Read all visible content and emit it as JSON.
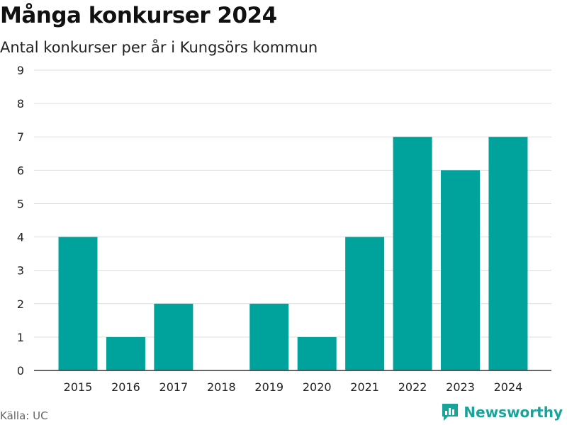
{
  "chart_data": {
    "type": "bar",
    "title": "Många konkurser 2024",
    "subtitle": "Antal konkurser per år i Kungsörs kommun",
    "categories": [
      "2015",
      "2016",
      "2017",
      "2018",
      "2019",
      "2020",
      "2021",
      "2022",
      "2023",
      "2024"
    ],
    "values": [
      4,
      1,
      2,
      0,
      2,
      1,
      4,
      7,
      6,
      7
    ],
    "xlabel": "",
    "ylabel": "",
    "ylim": [
      0,
      9
    ],
    "yticks": [
      0,
      1,
      2,
      3,
      4,
      5,
      6,
      7,
      8,
      9
    ],
    "grid": true,
    "bar_color": "#00a39b"
  },
  "source": "Källa: UC",
  "brand": {
    "name": "Newsworthy",
    "icon": "newsworthy-logo-icon",
    "color": "#1aa39a"
  }
}
